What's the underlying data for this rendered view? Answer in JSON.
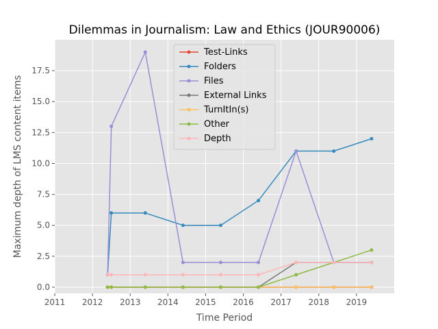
{
  "chart_data": {
    "type": "line",
    "title": "Dilemmas in Journalism: Law and Ethics (JOUR90006)",
    "xlabel": "Time Period",
    "ylabel": "Maximum depth of LMS content items",
    "xlim": [
      2011,
      2020
    ],
    "ylim": [
      -0.5,
      20
    ],
    "x_ticks": [
      "2011",
      "2012",
      "2013",
      "2014",
      "2015",
      "2016",
      "2017",
      "2018",
      "2019"
    ],
    "y_ticks": [
      "0.0",
      "2.5",
      "5.0",
      "7.5",
      "10.0",
      "12.5",
      "15.0",
      "17.5"
    ],
    "grid": true,
    "legend_position": "top-center",
    "x": [
      2012.4,
      2012.5,
      2013.4,
      2014.4,
      2015.4,
      2016.4,
      2017.4,
      2018.4,
      2019.4
    ],
    "series": [
      {
        "name": "Test-Links",
        "color": "#e24a33",
        "values": [
          0,
          0,
          0,
          0,
          0,
          0,
          0,
          0,
          0
        ]
      },
      {
        "name": "Folders",
        "color": "#348abd",
        "values": [
          1,
          6,
          6,
          5,
          5,
          7,
          11,
          11,
          12
        ]
      },
      {
        "name": "Files",
        "color": "#988ed5",
        "values": [
          1,
          13,
          19,
          2,
          2,
          2,
          11,
          2,
          2
        ]
      },
      {
        "name": "External Links",
        "color": "#777777",
        "values": [
          0,
          0,
          0,
          0,
          0,
          0,
          2,
          2,
          2
        ]
      },
      {
        "name": "TurnItIn(s)",
        "color": "#fbc15e",
        "values": [
          0,
          0,
          0,
          0,
          0,
          0,
          0,
          0,
          0
        ]
      },
      {
        "name": "Other",
        "color": "#8eba42",
        "values": [
          0,
          0,
          0,
          0,
          0,
          0,
          1,
          2,
          3
        ]
      },
      {
        "name": "Depth",
        "color": "#ffb5b8",
        "values": [
          1,
          1,
          1,
          1,
          1,
          1,
          2,
          2,
          2
        ]
      }
    ]
  }
}
